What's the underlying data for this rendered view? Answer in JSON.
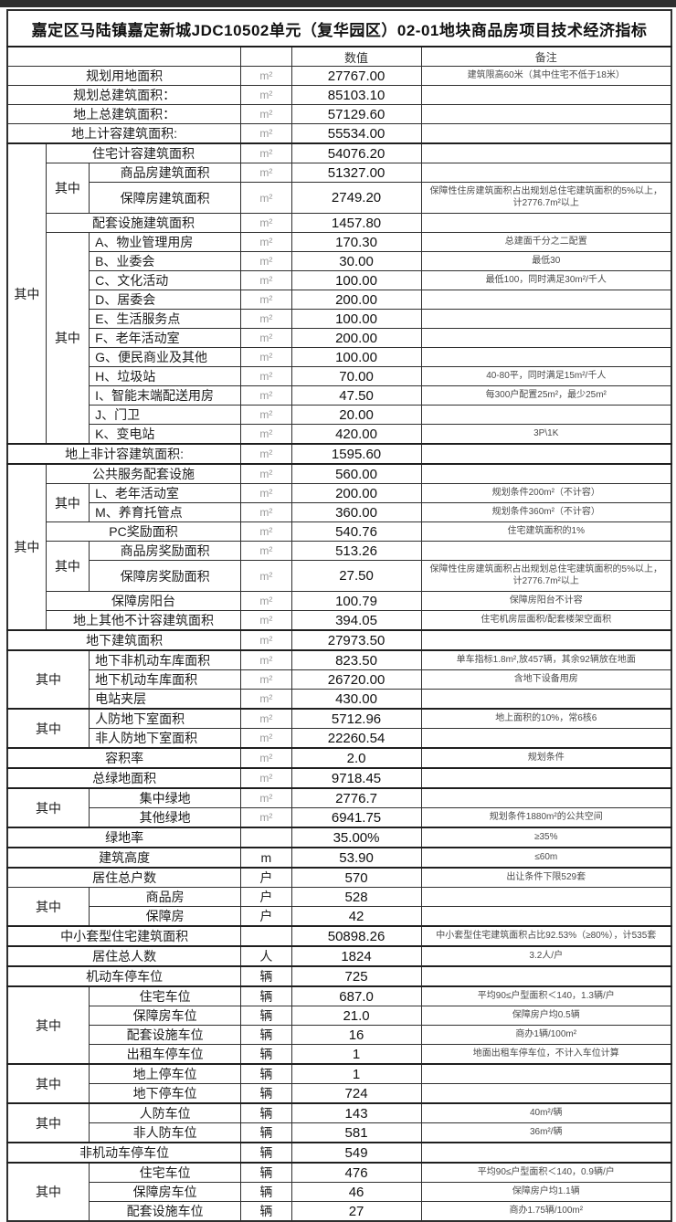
{
  "page": {
    "title": "嘉定区马陆镇嘉定新城JDC10502单元（复华园区）02-01地块商品房项目技术经济指标",
    "band_color": "#2e2e2e"
  },
  "table": {
    "qizhong": "其中",
    "header": {
      "value": "数值",
      "remark": "备注"
    },
    "rows": [
      {
        "label": "规划用地面积",
        "s": "full",
        "unit": "m²",
        "value": "27767.00",
        "remark": "建筑限高60米（其中住宅不低于18米）"
      },
      {
        "label": "规划总建筑面积：",
        "s": "full",
        "unit": "m²",
        "value": "85103.10",
        "remark": ""
      },
      {
        "label": "地上总建筑面积：",
        "s": "full",
        "unit": "m²",
        "value": "57129.60",
        "remark": ""
      },
      {
        "label": "地上计容建筑面积:",
        "s": "full",
        "unit": "m²",
        "value": "55534.00",
        "remark": ""
      },
      {
        "label": "住宅计容建筑面积",
        "s": "l2",
        "unit": "m²",
        "value": "54076.20",
        "remark": "",
        "g": [
          {
            "col": 1,
            "span": 15
          }
        ],
        "t": true
      },
      {
        "label": "商品房建筑面积",
        "s": "l3",
        "unit": "m²",
        "value": "51327.00",
        "remark": "",
        "g": [
          {
            "col": 2,
            "span": 2
          }
        ]
      },
      {
        "label": "保障房建筑面积",
        "s": "l3",
        "unit": "m²",
        "value": "2749.20",
        "remark": "保障性住房建筑面积占出规划总住宅建筑面积的5%以上，计2776.7m²以上",
        "tall": true
      },
      {
        "label": "配套设施建筑面积",
        "s": "l2",
        "unit": "m²",
        "value": "1457.80",
        "remark": ""
      },
      {
        "label": "A、物业管理用房",
        "s": "l3",
        "left": true,
        "unit": "m²",
        "value": "170.30",
        "remark": "总建面千分之二配置",
        "g": [
          {
            "col": 2,
            "span": 11
          }
        ]
      },
      {
        "label": "B、业委会",
        "s": "l3",
        "left": true,
        "unit": "m²",
        "value": "30.00",
        "remark": "最低30"
      },
      {
        "label": "C、文化活动",
        "s": "l3",
        "left": true,
        "unit": "m²",
        "value": "100.00",
        "remark": "最低100，同时满足30m²/千人"
      },
      {
        "label": "D、居委会",
        "s": "l3",
        "left": true,
        "unit": "m²",
        "value": "200.00",
        "remark": ""
      },
      {
        "label": "E、生活服务点",
        "s": "l3",
        "left": true,
        "unit": "m²",
        "value": "100.00",
        "remark": ""
      },
      {
        "label": "F、老年活动室",
        "s": "l3",
        "left": true,
        "unit": "m²",
        "value": "200.00",
        "remark": ""
      },
      {
        "label": "G、便民商业及其他",
        "s": "l3",
        "left": true,
        "unit": "m²",
        "value": "100.00",
        "remark": ""
      },
      {
        "label": "H、垃圾站",
        "s": "l3",
        "left": true,
        "unit": "m²",
        "value": "70.00",
        "remark": "40-80平，同时满足15m²/千人"
      },
      {
        "label": "I、智能末端配送用房",
        "s": "l3",
        "left": true,
        "unit": "m²",
        "value": "47.50",
        "remark": "每300户配置25m²，最少25m²"
      },
      {
        "label": "J、门卫",
        "s": "l3",
        "left": true,
        "unit": "m²",
        "value": "20.00",
        "remark": ""
      },
      {
        "label": "K、变电站",
        "s": "l3",
        "left": true,
        "unit": "m²",
        "value": "420.00",
        "remark": "3P\\1K"
      },
      {
        "label": "地上非计容建筑面积:",
        "s": "full",
        "unit": "m²",
        "value": "1595.60",
        "remark": "",
        "t": true
      },
      {
        "label": "公共服务配套设施",
        "s": "l2",
        "unit": "m²",
        "value": "560.00",
        "remark": "",
        "g": [
          {
            "col": 1,
            "span": 8
          }
        ],
        "t": true
      },
      {
        "label": "L、老年活动室",
        "s": "l3",
        "left": true,
        "unit": "m²",
        "value": "200.00",
        "remark": "规划条件200m²（不计容）",
        "g": [
          {
            "col": 2,
            "span": 2
          }
        ]
      },
      {
        "label": "M、养育托管点",
        "s": "l3",
        "left": true,
        "unit": "m²",
        "value": "360.00",
        "remark": "规划条件360m²（不计容）"
      },
      {
        "label": "PC奖励面积",
        "s": "l2",
        "unit": "m²",
        "value": "540.76",
        "remark": "住宅建筑面积的1%"
      },
      {
        "label": "商品房奖励面积",
        "s": "l3",
        "unit": "m²",
        "value": "513.26",
        "remark": "",
        "g": [
          {
            "col": 2,
            "span": 2
          }
        ]
      },
      {
        "label": "保障房奖励面积",
        "s": "l3",
        "unit": "m²",
        "value": "27.50",
        "remark": "保障性住房建筑面积占出规划总住宅建筑面积的5%以上，计2776.7m²以上",
        "tall": true
      },
      {
        "label": "保障房阳台",
        "s": "l2",
        "unit": "m²",
        "value": "100.79",
        "remark": "保障房阳台不计容"
      },
      {
        "label": "地上其他不计容建筑面积",
        "s": "l2",
        "unit": "m²",
        "value": "394.05",
        "remark": "住宅机房层面积/配套楼架空面积"
      },
      {
        "label": "地下建筑面积",
        "s": "full",
        "unit": "m²",
        "value": "27973.50",
        "remark": "",
        "t": true
      },
      {
        "label": "地下非机动车库面积",
        "s": "l3",
        "left": true,
        "unit": "m²",
        "value": "823.50",
        "remark": "单车指标1.8m²,放457辆，其余92辆放在地面",
        "g": [
          {
            "col": 12,
            "span": 3
          }
        ],
        "t": true
      },
      {
        "label": "地下机动车库面积",
        "s": "l3",
        "left": true,
        "unit": "m²",
        "value": "26720.00",
        "remark": "含地下设备用房"
      },
      {
        "label": "电站夹层",
        "s": "l3",
        "left": true,
        "unit": "m²",
        "value": "430.00",
        "remark": ""
      },
      {
        "label": "人防地下室面积",
        "s": "l3",
        "left": true,
        "unit": "m²",
        "value": "5712.96",
        "remark": "地上面积的10%，常6核6",
        "g": [
          {
            "col": 12,
            "span": 2
          }
        ],
        "t": true
      },
      {
        "label": "非人防地下室面积",
        "s": "l3",
        "left": true,
        "unit": "m²",
        "value": "22260.54",
        "remark": ""
      },
      {
        "label": "容积率",
        "s": "full",
        "unit": "m²",
        "value": "2.0",
        "remark": "规划条件",
        "t": true
      },
      {
        "label": "总绿地面积",
        "s": "full",
        "unit": "m²",
        "value": "9718.45",
        "remark": "",
        "t": true
      },
      {
        "label": "集中绿地",
        "s": "l3",
        "unit": "m²",
        "value": "2776.7",
        "remark": "",
        "g": [
          {
            "col": 12,
            "span": 2
          }
        ],
        "t": true
      },
      {
        "label": "其他绿地",
        "s": "l3",
        "unit": "m²",
        "value": "6941.75",
        "remark": "规划条件1880m²的公共空间"
      },
      {
        "label": "绿地率",
        "s": "full",
        "unit": "",
        "value": "35.00%",
        "remark": "≥35%",
        "t": true
      },
      {
        "label": "建筑高度",
        "s": "full",
        "unit": "m",
        "value": "53.90",
        "remark": "≤60m",
        "t": true
      },
      {
        "label": "居住总户数",
        "s": "full",
        "unit": "户",
        "value": "570",
        "remark": "出让条件下限529套",
        "t": true
      },
      {
        "label": "商品房",
        "s": "l3",
        "unit": "户",
        "value": "528",
        "remark": "",
        "g": [
          {
            "col": 12,
            "span": 2
          }
        ]
      },
      {
        "label": "保障房",
        "s": "l3",
        "unit": "户",
        "value": "42",
        "remark": ""
      },
      {
        "label": "中小套型住宅建筑面积",
        "s": "full",
        "unit": "",
        "value": "50898.26",
        "remark": "中小套型住宅建筑面积占比92.53%（≥80%），计535套",
        "t": true
      },
      {
        "label": "居住总人数",
        "s": "full",
        "unit": "人",
        "value": "1824",
        "remark": "3.2人/户",
        "t": true
      },
      {
        "label": "机动车停车位",
        "s": "full",
        "unit": "辆",
        "value": "725",
        "remark": "",
        "t": true
      },
      {
        "label": "住宅车位",
        "s": "l3",
        "unit": "辆",
        "value": "687.0",
        "remark": "平均90≤户型面积＜140，1.3辆/户",
        "g": [
          {
            "col": 12,
            "span": 4
          }
        ],
        "t": true
      },
      {
        "label": "保障房车位",
        "s": "l3",
        "unit": "辆",
        "value": "21.0",
        "remark": "保障房户均0.5辆"
      },
      {
        "label": "配套设施车位",
        "s": "l3",
        "unit": "辆",
        "value": "16",
        "remark": "商办1辆/100m²"
      },
      {
        "label": "出租车停车位",
        "s": "l3",
        "unit": "辆",
        "value": "1",
        "remark": "地面出租车停车位，不计入车位计算"
      },
      {
        "label": "地上停车位",
        "s": "l3",
        "unit": "辆",
        "value": "1",
        "remark": "",
        "g": [
          {
            "col": 12,
            "span": 2
          }
        ],
        "t": true
      },
      {
        "label": "地下停车位",
        "s": "l3",
        "unit": "辆",
        "value": "724",
        "remark": ""
      },
      {
        "label": "人防车位",
        "s": "l3",
        "unit": "辆",
        "value": "143",
        "remark": "40m²/辆",
        "g": [
          {
            "col": 12,
            "span": 2
          }
        ],
        "t": true
      },
      {
        "label": "非人防车位",
        "s": "l3",
        "unit": "辆",
        "value": "581",
        "remark": "36m²/辆"
      },
      {
        "label": "非机动车停车位",
        "s": "full",
        "unit": "辆",
        "value": "549",
        "remark": "",
        "t": true
      },
      {
        "label": "住宅车位",
        "s": "l3",
        "unit": "辆",
        "value": "476",
        "remark": "平均90≤户型面积＜140，0.9辆/户",
        "g": [
          {
            "col": 12,
            "span": 3
          }
        ],
        "t": true
      },
      {
        "label": "保障房车位",
        "s": "l3",
        "unit": "辆",
        "value": "46",
        "remark": "保障房户均1.1辆"
      },
      {
        "label": "配套设施车位",
        "s": "l3",
        "unit": "辆",
        "value": "27",
        "remark": "商办1.75辆/100m²"
      }
    ]
  }
}
